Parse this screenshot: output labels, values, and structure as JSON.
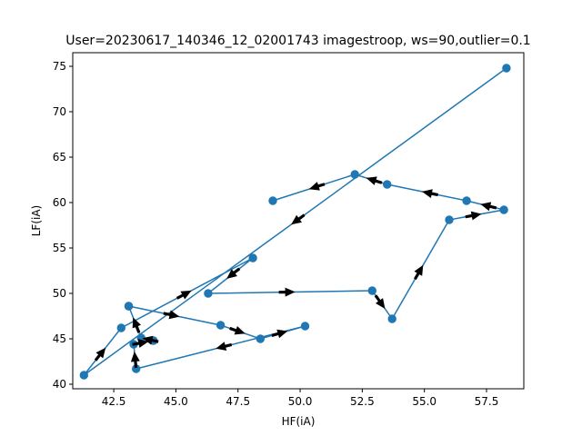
{
  "chart_data": {
    "type": "line",
    "title": "User=20230617_140346_12_02001743 imagestroop, ws=90,outlier=0.1",
    "xlabel": "HF(iA)",
    "ylabel": "LF(iA)",
    "xlim": [
      40.85,
      59.0
    ],
    "ylim": [
      39.5,
      76.5
    ],
    "xticks": [
      "42.5",
      "45.0",
      "47.5",
      "50.0",
      "52.5",
      "55.0",
      "57.5"
    ],
    "yticks": [
      "40",
      "45",
      "50",
      "55",
      "60",
      "65",
      "70",
      "75"
    ],
    "grid": false,
    "series": [
      {
        "color": "#1f77b4",
        "arrow_color": "#000000",
        "points": [
          [
            58.3,
            74.8
          ],
          [
            41.3,
            41.0
          ],
          [
            42.8,
            46.2
          ],
          [
            48.1,
            53.9
          ],
          [
            46.3,
            50.0
          ],
          [
            52.9,
            50.3
          ],
          [
            53.7,
            47.2
          ],
          [
            56.0,
            58.1
          ],
          [
            58.2,
            59.2
          ],
          [
            56.7,
            60.2
          ],
          [
            53.5,
            62.0
          ],
          [
            52.2,
            63.1
          ],
          [
            48.9,
            60.2
          ]
        ]
      },
      {
        "color": "#1f77b4",
        "arrow_color": "#000000",
        "points": [
          [
            43.1,
            48.6
          ],
          [
            46.8,
            46.5
          ],
          [
            48.4,
            45.0
          ],
          [
            50.2,
            46.4
          ],
          [
            43.4,
            41.7
          ],
          [
            43.3,
            44.4
          ],
          [
            44.1,
            44.8
          ],
          [
            43.6,
            45.1
          ],
          [
            43.1,
            48.6
          ]
        ]
      }
    ]
  }
}
